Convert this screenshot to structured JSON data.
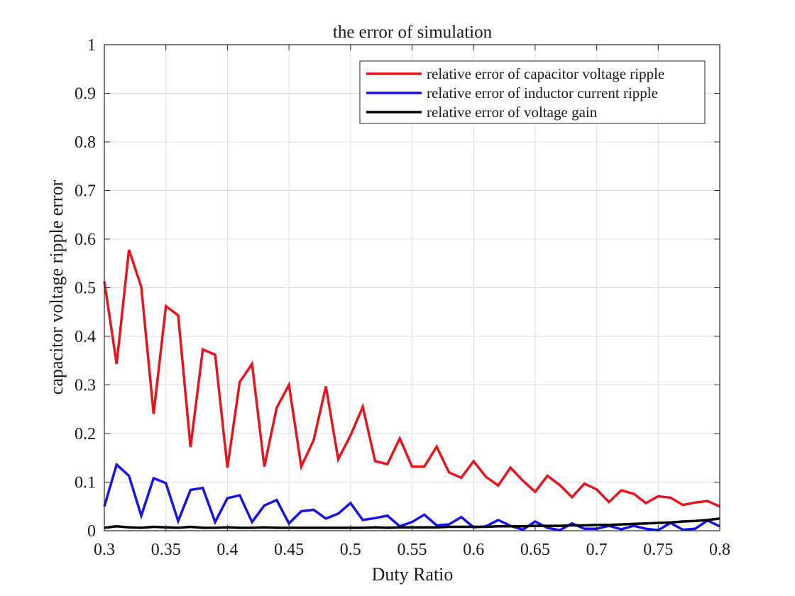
{
  "chart_data": {
    "type": "line",
    "title": "the error of simulation",
    "xlabel": "Duty Ratio",
    "ylabel": "capacitor voltage ripple error",
    "xlim": [
      0.3,
      0.8
    ],
    "ylim": [
      0,
      1
    ],
    "xticks": [
      "0.3",
      "0.35",
      "0.4",
      "0.45",
      "0.5",
      "0.55",
      "0.6",
      "0.65",
      "0.7",
      "0.75",
      "0.8"
    ],
    "yticks": [
      "0",
      "0.1",
      "0.2",
      "0.3",
      "0.4",
      "0.5",
      "0.6",
      "0.7",
      "0.8",
      "0.9",
      "1"
    ],
    "grid": true,
    "legend_position": "top-right",
    "x": [
      0.3,
      0.31,
      0.32,
      0.33,
      0.34,
      0.35,
      0.36,
      0.37,
      0.38,
      0.39,
      0.4,
      0.41,
      0.42,
      0.43,
      0.44,
      0.45,
      0.46,
      0.47,
      0.48,
      0.49,
      0.5,
      0.51,
      0.52,
      0.53,
      0.54,
      0.55,
      0.56,
      0.57,
      0.58,
      0.59,
      0.6,
      0.61,
      0.62,
      0.63,
      0.64,
      0.65,
      0.66,
      0.67,
      0.68,
      0.69,
      0.7,
      0.71,
      0.72,
      0.73,
      0.74,
      0.75,
      0.76,
      0.77,
      0.78,
      0.79,
      0.8
    ],
    "series": [
      {
        "name": "relative error of capacitor voltage ripple",
        "color": "#e8141c",
        "values": [
          0.513,
          0.343,
          0.578,
          0.502,
          0.24,
          0.462,
          0.443,
          0.172,
          0.373,
          0.362,
          0.13,
          0.306,
          0.343,
          0.132,
          0.253,
          0.3,
          0.132,
          0.186,
          0.297,
          0.147,
          0.196,
          0.255,
          0.143,
          0.137,
          0.19,
          0.132,
          0.132,
          0.173,
          0.12,
          0.109,
          0.143,
          0.111,
          0.093,
          0.13,
          0.103,
          0.08,
          0.113,
          0.094,
          0.069,
          0.097,
          0.085,
          0.059,
          0.083,
          0.076,
          0.057,
          0.071,
          0.068,
          0.053,
          0.058,
          0.061,
          0.05
        ]
      },
      {
        "name": "relative error of inductor current ripple",
        "color": "#1414e6",
        "values": [
          0.05,
          0.136,
          0.113,
          0.031,
          0.108,
          0.098,
          0.02,
          0.084,
          0.088,
          0.018,
          0.067,
          0.073,
          0.018,
          0.052,
          0.063,
          0.015,
          0.04,
          0.043,
          0.025,
          0.035,
          0.057,
          0.022,
          0.026,
          0.031,
          0.009,
          0.018,
          0.033,
          0.011,
          0.013,
          0.028,
          0.007,
          0.009,
          0.022,
          0.01,
          0.002,
          0.019,
          0.006,
          0.001,
          0.015,
          0.004,
          0.004,
          0.01,
          0.003,
          0.01,
          0.004,
          0.001,
          0.016,
          0.002,
          0.004,
          0.021,
          0.009
        ]
      },
      {
        "name": "relative error of voltage gain",
        "color": "#000000",
        "values": [
          0.006,
          0.009,
          0.007,
          0.006,
          0.008,
          0.007,
          0.006,
          0.008,
          0.006,
          0.006,
          0.007,
          0.006,
          0.006,
          0.007,
          0.006,
          0.006,
          0.006,
          0.006,
          0.006,
          0.006,
          0.006,
          0.006,
          0.007,
          0.006,
          0.007,
          0.007,
          0.007,
          0.007,
          0.008,
          0.008,
          0.008,
          0.008,
          0.009,
          0.009,
          0.009,
          0.01,
          0.01,
          0.01,
          0.011,
          0.011,
          0.012,
          0.012,
          0.013,
          0.014,
          0.015,
          0.016,
          0.017,
          0.019,
          0.02,
          0.022,
          0.025
        ]
      }
    ]
  }
}
